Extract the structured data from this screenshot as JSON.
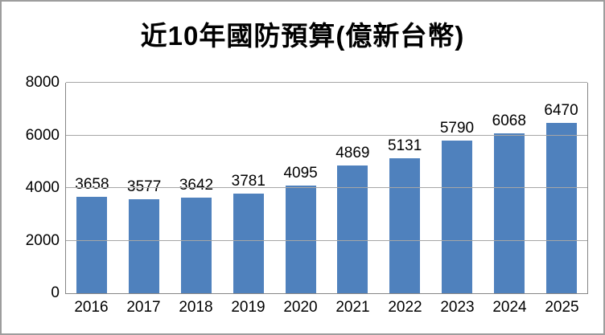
{
  "chart_data": {
    "type": "bar",
    "title": "近10年國防預算(億新台幣)",
    "categories": [
      "2016",
      "2017",
      "2018",
      "2019",
      "2020",
      "2021",
      "2022",
      "2023",
      "2024",
      "2025"
    ],
    "values": [
      3658,
      3577,
      3642,
      3781,
      4095,
      4869,
      5131,
      5790,
      6068,
      6470
    ],
    "data_labels_shown": true,
    "xlabel": "",
    "ylabel": "",
    "ylim": [
      0,
      8000
    ],
    "yticks": [
      0,
      2000,
      4000,
      6000,
      8000
    ],
    "grid": "horizontal",
    "legend_position": "none",
    "bar_color": "#4f81bd",
    "gridline_color": "#a6a6a6",
    "axis_color": "#868686",
    "frame_border_color": "#9d9d9d",
    "background_color": "#ffffff"
  }
}
